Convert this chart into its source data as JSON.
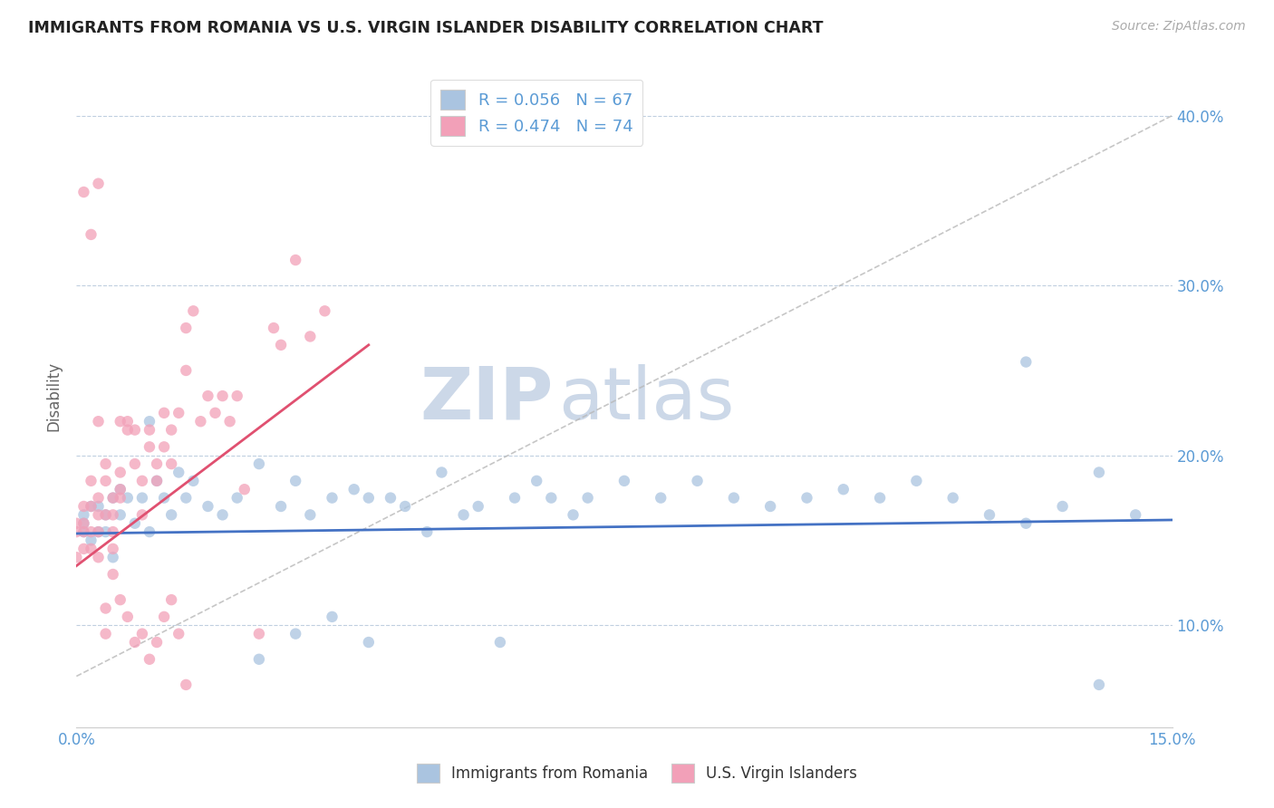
{
  "title": "IMMIGRANTS FROM ROMANIA VS U.S. VIRGIN ISLANDER DISABILITY CORRELATION CHART",
  "source": "Source: ZipAtlas.com",
  "ylabel": "Disability",
  "xlim": [
    0.0,
    0.15
  ],
  "ylim": [
    0.04,
    0.43
  ],
  "legend_r1": "R = 0.056",
  "legend_n1": "N = 67",
  "legend_r2": "R = 0.474",
  "legend_n2": "N = 74",
  "color_blue": "#aac4e0",
  "color_pink": "#f2a0b8",
  "line_blue": "#4472c4",
  "line_pink": "#e05070",
  "line_gray": "#b8b8b8",
  "watermark_zip": "ZIP",
  "watermark_atlas": "atlas",
  "title_color": "#222222",
  "axis_label_color": "#5b9bd5",
  "romania_x": [
    0.001,
    0.001,
    0.001,
    0.002,
    0.002,
    0.003,
    0.003,
    0.004,
    0.004,
    0.005,
    0.005,
    0.006,
    0.006,
    0.007,
    0.008,
    0.009,
    0.01,
    0.01,
    0.011,
    0.012,
    0.013,
    0.014,
    0.015,
    0.016,
    0.018,
    0.02,
    0.022,
    0.025,
    0.028,
    0.03,
    0.032,
    0.035,
    0.038,
    0.04,
    0.043,
    0.045,
    0.048,
    0.05,
    0.053,
    0.055,
    0.058,
    0.06,
    0.063,
    0.065,
    0.068,
    0.07,
    0.075,
    0.08,
    0.085,
    0.09,
    0.095,
    0.1,
    0.105,
    0.11,
    0.115,
    0.12,
    0.125,
    0.13,
    0.135,
    0.14,
    0.13,
    0.14,
    0.145,
    0.025,
    0.03,
    0.035,
    0.04
  ],
  "romania_y": [
    0.155,
    0.16,
    0.165,
    0.15,
    0.17,
    0.155,
    0.17,
    0.165,
    0.155,
    0.175,
    0.14,
    0.165,
    0.18,
    0.175,
    0.16,
    0.175,
    0.22,
    0.155,
    0.185,
    0.175,
    0.165,
    0.19,
    0.175,
    0.185,
    0.17,
    0.165,
    0.175,
    0.195,
    0.17,
    0.185,
    0.165,
    0.175,
    0.18,
    0.175,
    0.175,
    0.17,
    0.155,
    0.19,
    0.165,
    0.17,
    0.09,
    0.175,
    0.185,
    0.175,
    0.165,
    0.175,
    0.185,
    0.175,
    0.185,
    0.175,
    0.17,
    0.175,
    0.18,
    0.175,
    0.185,
    0.175,
    0.165,
    0.255,
    0.17,
    0.065,
    0.16,
    0.19,
    0.165,
    0.08,
    0.095,
    0.105,
    0.09
  ],
  "virgin_x": [
    0.0,
    0.0,
    0.0,
    0.001,
    0.001,
    0.001,
    0.001,
    0.002,
    0.002,
    0.002,
    0.002,
    0.003,
    0.003,
    0.003,
    0.003,
    0.004,
    0.004,
    0.004,
    0.005,
    0.005,
    0.005,
    0.006,
    0.006,
    0.006,
    0.007,
    0.007,
    0.008,
    0.008,
    0.009,
    0.009,
    0.01,
    0.01,
    0.011,
    0.011,
    0.012,
    0.012,
    0.013,
    0.013,
    0.014,
    0.015,
    0.015,
    0.016,
    0.017,
    0.018,
    0.019,
    0.02,
    0.021,
    0.022,
    0.023,
    0.025,
    0.027,
    0.028,
    0.03,
    0.032,
    0.034,
    0.001,
    0.002,
    0.003,
    0.003,
    0.004,
    0.004,
    0.005,
    0.005,
    0.006,
    0.006,
    0.007,
    0.008,
    0.009,
    0.01,
    0.011,
    0.012,
    0.013,
    0.014,
    0.015
  ],
  "virgin_y": [
    0.155,
    0.14,
    0.16,
    0.155,
    0.17,
    0.145,
    0.16,
    0.155,
    0.17,
    0.145,
    0.185,
    0.155,
    0.165,
    0.175,
    0.14,
    0.165,
    0.185,
    0.195,
    0.175,
    0.155,
    0.165,
    0.19,
    0.175,
    0.22,
    0.215,
    0.22,
    0.195,
    0.215,
    0.165,
    0.185,
    0.205,
    0.215,
    0.195,
    0.185,
    0.205,
    0.225,
    0.215,
    0.195,
    0.225,
    0.25,
    0.275,
    0.285,
    0.22,
    0.235,
    0.225,
    0.235,
    0.22,
    0.235,
    0.18,
    0.095,
    0.275,
    0.265,
    0.315,
    0.27,
    0.285,
    0.355,
    0.33,
    0.36,
    0.22,
    0.095,
    0.11,
    0.13,
    0.145,
    0.18,
    0.115,
    0.105,
    0.09,
    0.095,
    0.08,
    0.09,
    0.105,
    0.115,
    0.095,
    0.065
  ]
}
